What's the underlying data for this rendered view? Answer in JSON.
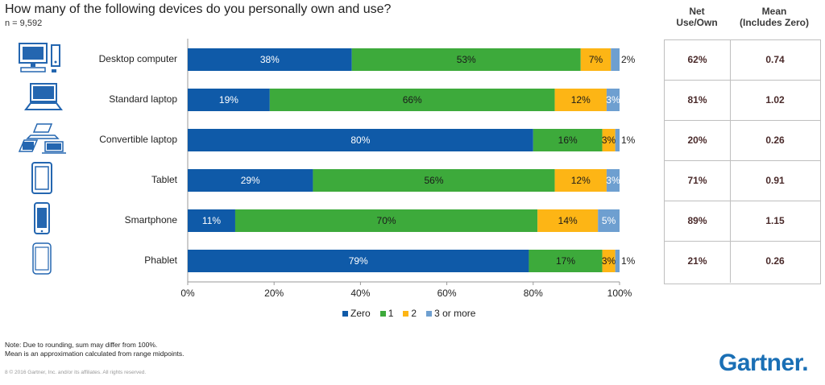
{
  "title": "How many of the following devices do you personally own and use?",
  "subtitle": "n = 9,592",
  "table": {
    "headers": [
      "Net\nUse/Own",
      "Mean\n(Includes Zero)"
    ],
    "rows": [
      {
        "net": "62%",
        "mean": "0.74"
      },
      {
        "net": "81%",
        "mean": "1.02"
      },
      {
        "net": "20%",
        "mean": "0.26"
      },
      {
        "net": "71%",
        "mean": "0.91"
      },
      {
        "net": "89%",
        "mean": "1.15"
      },
      {
        "net": "21%",
        "mean": "0.26"
      }
    ]
  },
  "icons": [
    "desktop-computer-icon",
    "laptop-icon",
    "convertible-laptop-icon",
    "tablet-icon",
    "smartphone-icon",
    "phablet-icon"
  ],
  "colors": {
    "zero": "#0f5aa8",
    "one": "#3daa3b",
    "two": "#fdb515",
    "three": "#6e9fd0",
    "icon": "#2466b0"
  },
  "chart_data": {
    "type": "bar",
    "orientation": "horizontal",
    "stacked": true,
    "categories": [
      "Desktop computer",
      "Standard laptop",
      "Convertible laptop",
      "Tablet",
      "Smartphone",
      "Phablet"
    ],
    "series": [
      {
        "name": "Zero",
        "values": [
          38,
          19,
          80,
          29,
          11,
          79
        ],
        "labels": [
          "38%",
          "19%",
          "80%",
          "29%",
          "11%",
          "79%"
        ]
      },
      {
        "name": "1",
        "values": [
          53,
          66,
          16,
          56,
          70,
          17
        ],
        "labels": [
          "53%",
          "66%",
          "16%",
          "56%",
          "70%",
          "17%"
        ]
      },
      {
        "name": "2",
        "values": [
          7,
          12,
          3,
          12,
          14,
          3
        ],
        "labels": [
          "7%",
          "12%",
          "3%",
          "12%",
          "14%",
          "3%"
        ]
      },
      {
        "name": "3 or more",
        "values": [
          2,
          3,
          1,
          3,
          5,
          1
        ],
        "labels": [
          "2%",
          "3%",
          "1%",
          "3%",
          "5%",
          "1%"
        ]
      }
    ],
    "xlim": [
      0,
      100
    ],
    "xticks": [
      "0%",
      "20%",
      "40%",
      "60%",
      "80%",
      "100%"
    ],
    "legend": "bottom",
    "grid": false
  },
  "notes": [
    "Note: Due to rounding, sum may differ from 100%.",
    "Mean is an approximation calculated from range midpoints."
  ],
  "copyright": "8     © 2016 Gartner, Inc. and/or its affiliates. All rights reserved.",
  "logo": "Gartner."
}
